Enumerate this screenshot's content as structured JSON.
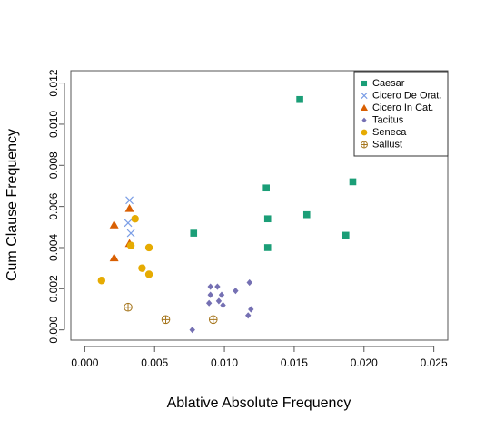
{
  "chart_data": {
    "type": "scatter",
    "xlabel": "Ablative Absolute Frequency",
    "ylabel": "Cum Clause Frequency",
    "xlim": [
      -0.001,
      0.026
    ],
    "ylim": [
      -0.0005,
      0.0126
    ],
    "xticks": [
      "0.000",
      "0.005",
      "0.010",
      "0.015",
      "0.020",
      "0.025"
    ],
    "xtick_values": [
      0,
      0.005,
      0.01,
      0.015,
      0.02,
      0.025
    ],
    "yticks": [
      "0.000",
      "0.002",
      "0.004",
      "0.006",
      "0.008",
      "0.010",
      "0.012"
    ],
    "ytick_values": [
      0,
      0.002,
      0.004,
      0.006,
      0.008,
      0.01,
      0.012
    ],
    "grid": false,
    "legend_position": "top-right",
    "series": [
      {
        "name": "Caesar",
        "marker": "square",
        "color": "#1b9e77",
        "points": [
          [
            0.0154,
            0.0112
          ],
          [
            0.0192,
            0.0072
          ],
          [
            0.013,
            0.0069
          ],
          [
            0.0159,
            0.0056
          ],
          [
            0.0131,
            0.0054
          ],
          [
            0.0078,
            0.0047
          ],
          [
            0.0187,
            0.0046
          ],
          [
            0.0131,
            0.004
          ]
        ]
      },
      {
        "name": "Cicero De Orat.",
        "marker": "x",
        "color": "#7b9ee6",
        "points": [
          [
            0.0032,
            0.0063
          ],
          [
            0.0031,
            0.0052
          ],
          [
            0.0033,
            0.0047
          ]
        ]
      },
      {
        "name": "Cicero In Cat.",
        "marker": "triangle",
        "color": "#d95f02",
        "points": [
          [
            0.0032,
            0.0059
          ],
          [
            0.0021,
            0.0051
          ],
          [
            0.0032,
            0.0042
          ],
          [
            0.0021,
            0.0035
          ]
        ]
      },
      {
        "name": "Tacitus",
        "marker": "diamond",
        "color": "#7570b3",
        "points": [
          [
            0.009,
            0.0021
          ],
          [
            0.0095,
            0.0021
          ],
          [
            0.0118,
            0.0023
          ],
          [
            0.009,
            0.0017
          ],
          [
            0.0098,
            0.0017
          ],
          [
            0.0108,
            0.0019
          ],
          [
            0.0089,
            0.0013
          ],
          [
            0.0096,
            0.0014
          ],
          [
            0.0099,
            0.0012
          ],
          [
            0.0119,
            0.001
          ],
          [
            0.0117,
            0.0007
          ],
          [
            0.0077,
            0.0
          ]
        ]
      },
      {
        "name": "Seneca",
        "marker": "circle",
        "color": "#e6ab02",
        "points": [
          [
            0.0036,
            0.0054
          ],
          [
            0.0033,
            0.0041
          ],
          [
            0.0046,
            0.004
          ],
          [
            0.0041,
            0.003
          ],
          [
            0.0046,
            0.0027
          ],
          [
            0.0012,
            0.0024
          ]
        ]
      },
      {
        "name": "Sallust",
        "marker": "circle-plus",
        "color": "#a6761d",
        "points": [
          [
            0.0031,
            0.0011
          ],
          [
            0.0058,
            0.0005
          ],
          [
            0.0092,
            0.0005
          ]
        ]
      }
    ]
  }
}
